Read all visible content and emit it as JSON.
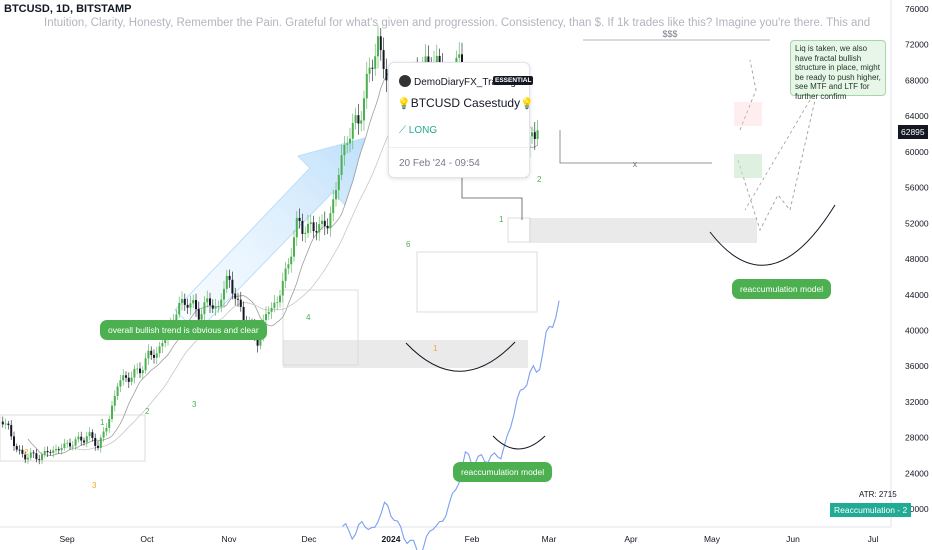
{
  "header": {
    "symbol": "BTCUSD, 1D, BITSTAMP",
    "description": "Intuition, Clarity, Honesty, Remember the Pain. Grateful for what's given and progression. Consistency, than $. If 1k trades like this? Imagine you're there. This and next trades is what matters, not $."
  },
  "idea_card": {
    "author": "DemoDiaryFX_Trading",
    "badge": "ESSENTIAL",
    "title": "BTCUSD Casestudy",
    "side": "LONG",
    "date": "20 Feb '24 - 09:54"
  },
  "annotations": {
    "trend_note": "overall bullish trend is obvious and clear",
    "reaccum_note_1": "reaccumulation model",
    "reaccum_note_2": "reaccumulation model",
    "liq_note": "Liq is taken, we also have fractal bullish structure in place, might be ready to push higher, see MTF and LTF for further confirm",
    "dollars": "$$$",
    "x_mark": "x",
    "atr": "ATR: 2715",
    "indicator_label": "Reaccumulation - 2",
    "current_price": "62895",
    "wave_counts": [
      "2",
      "1",
      "3",
      "2",
      "3",
      "4",
      "6",
      "1",
      "1",
      "2"
    ]
  },
  "colors": {
    "up": "#4caf50",
    "down": "#131722",
    "accent_blue": "#7b9ff2",
    "trend_arrow": "#bbdefb",
    "zone_gray": "#e0e0e0",
    "note_green": "#4caf50",
    "badge_teal": "#22ab94"
  },
  "chart_data": {
    "type": "candlestick",
    "y_axis": {
      "side": "right",
      "ylim": [
        18000,
        77000
      ],
      "ticks": [
        "76000",
        "72000",
        "68000",
        "64000",
        "60000",
        "56000",
        "52000",
        "48000",
        "44000",
        "40000",
        "36000",
        "32000",
        "28000",
        "24000",
        "20000"
      ]
    },
    "x_axis": {
      "ticks": [
        "Sep",
        "Oct",
        "Nov",
        "Dec",
        "2024",
        "Feb",
        "Mar",
        "Apr",
        "May",
        "Jun",
        "Jul"
      ]
    },
    "price_path": [
      [
        0,
        29800
      ],
      [
        8,
        29300
      ],
      [
        18,
        26200
      ],
      [
        28,
        26000
      ],
      [
        38,
        25800
      ],
      [
        48,
        26400
      ],
      [
        58,
        26700
      ],
      [
        68,
        27300
      ],
      [
        78,
        27600
      ],
      [
        88,
        28300
      ],
      [
        98,
        27100
      ],
      [
        108,
        29600
      ],
      [
        118,
        34200
      ],
      [
        128,
        34800
      ],
      [
        138,
        35300
      ],
      [
        148,
        37100
      ],
      [
        158,
        37600
      ],
      [
        168,
        39800
      ],
      [
        178,
        42600
      ],
      [
        188,
        43400
      ],
      [
        198,
        41800
      ],
      [
        208,
        43200
      ],
      [
        218,
        42400
      ],
      [
        228,
        46200
      ],
      [
        238,
        42800
      ],
      [
        248,
        40600
      ],
      [
        258,
        38900
      ],
      [
        268,
        42300
      ],
      [
        278,
        43300
      ],
      [
        288,
        47500
      ],
      [
        298,
        52200
      ],
      [
        308,
        51200
      ],
      [
        318,
        51800
      ],
      [
        328,
        51700
      ],
      [
        338,
        57200
      ],
      [
        348,
        62100
      ],
      [
        358,
        63200
      ],
      [
        368,
        68200
      ],
      [
        378,
        72500
      ],
      [
        388,
        67200
      ],
      [
        398,
        64300
      ],
      [
        408,
        66400
      ],
      [
        418,
        69300
      ],
      [
        428,
        69700
      ],
      [
        438,
        70400
      ],
      [
        448,
        66200
      ],
      [
        458,
        70600
      ],
      [
        468,
        64200
      ],
      [
        478,
        62100
      ],
      [
        488,
        63600
      ],
      [
        498,
        64800
      ],
      [
        508,
        58400
      ],
      [
        518,
        62900
      ],
      [
        525,
        58200
      ],
      [
        532,
        62200
      ],
      [
        540,
        62895
      ]
    ],
    "bar_ratio": 0.985,
    "overlay_series_ratio": 0.81
  }
}
